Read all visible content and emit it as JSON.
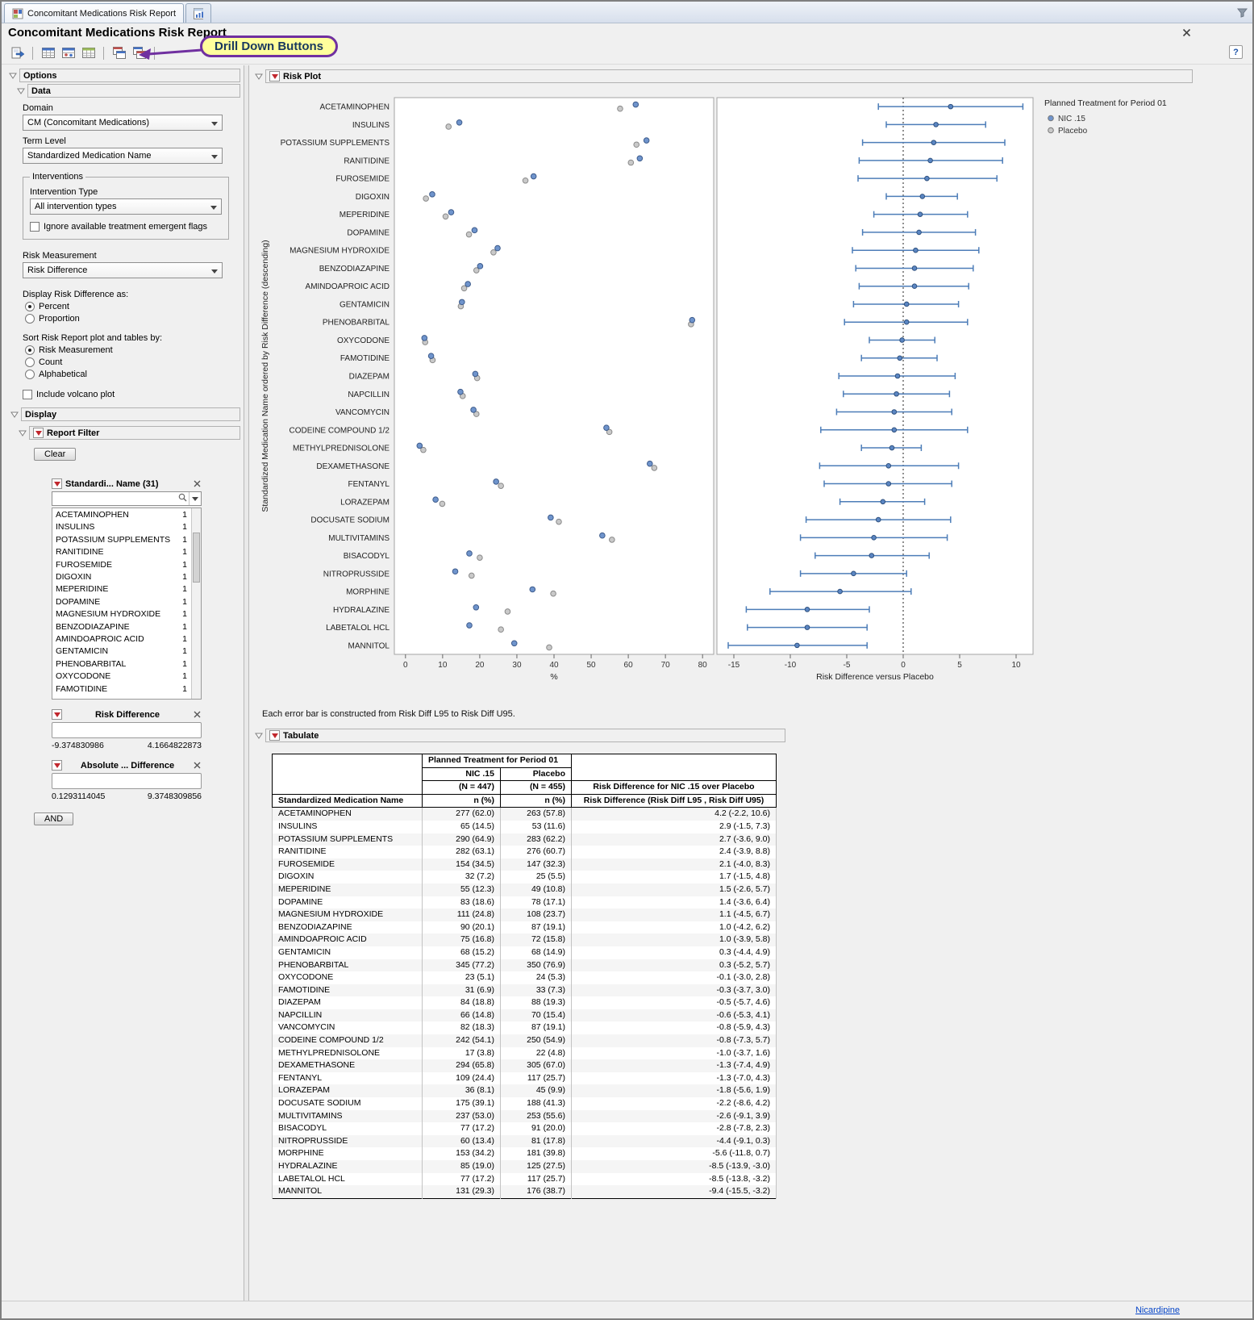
{
  "window": {
    "tab_title": "Concomitant Medications Risk Report",
    "page_title": "Concomitant Medications Risk Report",
    "help_glyph": "?",
    "status_link": "Nicardipine"
  },
  "callout": {
    "text": "Drill Down Buttons"
  },
  "sidebar": {
    "title": "Options",
    "data": {
      "title": "Data",
      "domain": {
        "label": "Domain",
        "value": "CM (Concomitant Medications)"
      },
      "term_level": {
        "label": "Term Level",
        "value": "Standardized Medication Name"
      },
      "interventions": {
        "title": "Interventions",
        "type_label": "Intervention Type",
        "type_value": "All intervention types",
        "ignore_flags_label": "Ignore available treatment emergent flags"
      },
      "risk_measurement": {
        "label": "Risk Measurement",
        "value": "Risk Difference"
      },
      "display_as": {
        "label": "Display Risk Difference as:",
        "options": [
          "Percent",
          "Proportion"
        ],
        "selected": "Percent"
      },
      "sort_by": {
        "label": "Sort Risk Report plot and tables by:",
        "options": [
          "Risk Measurement",
          "Count",
          "Alphabetical"
        ],
        "selected": "Risk Measurement"
      },
      "volcano_label": "Include volcano plot"
    },
    "display": {
      "title": "Display",
      "report_filter_title": "Report Filter",
      "clear_label": "Clear",
      "and_label": "AND",
      "name_filter": {
        "title": "Standardi... Name (31)",
        "items": [
          {
            "label": "ACETAMINOPHEN",
            "count": "1"
          },
          {
            "label": "INSULINS",
            "count": "1"
          },
          {
            "label": "POTASSIUM SUPPLEMENTS",
            "count": "1"
          },
          {
            "label": "RANITIDINE",
            "count": "1"
          },
          {
            "label": "FUROSEMIDE",
            "count": "1"
          },
          {
            "label": "DIGOXIN",
            "count": "1"
          },
          {
            "label": "MEPERIDINE",
            "count": "1"
          },
          {
            "label": "DOPAMINE",
            "count": "1"
          },
          {
            "label": "MAGNESIUM HYDROXIDE",
            "count": "1"
          },
          {
            "label": "BENZODIAZAPINE",
            "count": "1"
          },
          {
            "label": "AMINDOAPROIC ACID",
            "count": "1"
          },
          {
            "label": "GENTAMICIN",
            "count": "1"
          },
          {
            "label": "PHENOBARBITAL",
            "count": "1"
          },
          {
            "label": "OXYCODONE",
            "count": "1"
          },
          {
            "label": "FAMOTIDINE",
            "count": "1"
          }
        ]
      },
      "risk_filter": {
        "title": "Risk Difference",
        "min": "-9.374830986",
        "max": "4.1664822873"
      },
      "abs_filter": {
        "title": "Absolute ... Difference",
        "min": "0.1293114045",
        "max": "9.3748309856"
      }
    }
  },
  "risk_plot": {
    "title": "Risk Plot",
    "footnote": "Each error bar is constructed from Risk Diff L95 to Risk Diff U95."
  },
  "tabulate": {
    "title": "Tabulate",
    "span_header": "Planned Treatment for Period 01",
    "nic_label": "NIC .15",
    "placebo_label": "Placebo",
    "nic_n": "(N = 447)",
    "placebo_n": "(N = 455)",
    "risk_over_header": "Risk Difference for NIC .15 over Placebo",
    "name_header": "Standardized Medication Name",
    "npct_header": "n (%)",
    "risk_detail_header": "Risk Difference (Risk Diff L95 , Risk Diff U95)"
  },
  "chart_data": {
    "type": "scatter",
    "title": "Risk Plot",
    "ylabel": "Standardized Medication Name ordered by Risk Difference (descending)",
    "left_panel": {
      "xlabel": "%",
      "xlim": [
        0,
        80
      ],
      "xticks": [
        0,
        10,
        20,
        30,
        40,
        50,
        60,
        70,
        80
      ]
    },
    "right_panel": {
      "xlabel": "Risk Difference versus Placebo",
      "xlim": [
        -15,
        10
      ],
      "xticks": [
        -15,
        -10,
        -5,
        0,
        5,
        10
      ],
      "reference_line": 0
    },
    "legend": {
      "title": "Planned Treatment for Period 01",
      "items": [
        {
          "label": "NIC .15",
          "color": "#6f94cc"
        },
        {
          "label": "Placebo",
          "color": "#c9c9c9"
        }
      ]
    },
    "rows": [
      {
        "name": "ACETAMINOPHEN",
        "nic": "277 (62.0)",
        "plc": "263 (57.8)",
        "nic_pct": 62.0,
        "plc_pct": 57.8,
        "diff": 4.2,
        "l95": -2.2,
        "u95": 10.6,
        "diff_text": "4.2 (-2.2, 10.6)"
      },
      {
        "name": "INSULINS",
        "nic": "65 (14.5)",
        "plc": "53 (11.6)",
        "nic_pct": 14.5,
        "plc_pct": 11.6,
        "diff": 2.9,
        "l95": -1.5,
        "u95": 7.3,
        "diff_text": "2.9 (-1.5, 7.3)"
      },
      {
        "name": "POTASSIUM SUPPLEMENTS",
        "nic": "290 (64.9)",
        "plc": "283 (62.2)",
        "nic_pct": 64.9,
        "plc_pct": 62.2,
        "diff": 2.7,
        "l95": -3.6,
        "u95": 9.0,
        "diff_text": "2.7 (-3.6, 9.0)"
      },
      {
        "name": "RANITIDINE",
        "nic": "282 (63.1)",
        "plc": "276 (60.7)",
        "nic_pct": 63.1,
        "plc_pct": 60.7,
        "diff": 2.4,
        "l95": -3.9,
        "u95": 8.8,
        "diff_text": "2.4 (-3.9, 8.8)"
      },
      {
        "name": "FUROSEMIDE",
        "nic": "154 (34.5)",
        "plc": "147 (32.3)",
        "nic_pct": 34.5,
        "plc_pct": 32.3,
        "diff": 2.1,
        "l95": -4.0,
        "u95": 8.3,
        "diff_text": "2.1 (-4.0, 8.3)"
      },
      {
        "name": "DIGOXIN",
        "nic": "32 (7.2)",
        "plc": "25 (5.5)",
        "nic_pct": 7.2,
        "plc_pct": 5.5,
        "diff": 1.7,
        "l95": -1.5,
        "u95": 4.8,
        "diff_text": "1.7 (-1.5, 4.8)"
      },
      {
        "name": "MEPERIDINE",
        "nic": "55 (12.3)",
        "plc": "49 (10.8)",
        "nic_pct": 12.3,
        "plc_pct": 10.8,
        "diff": 1.5,
        "l95": -2.6,
        "u95": 5.7,
        "diff_text": "1.5 (-2.6, 5.7)"
      },
      {
        "name": "DOPAMINE",
        "nic": "83 (18.6)",
        "plc": "78 (17.1)",
        "nic_pct": 18.6,
        "plc_pct": 17.1,
        "diff": 1.4,
        "l95": -3.6,
        "u95": 6.4,
        "diff_text": "1.4 (-3.6, 6.4)"
      },
      {
        "name": "MAGNESIUM HYDROXIDE",
        "nic": "111 (24.8)",
        "plc": "108 (23.7)",
        "nic_pct": 24.8,
        "plc_pct": 23.7,
        "diff": 1.1,
        "l95": -4.5,
        "u95": 6.7,
        "diff_text": "1.1 (-4.5, 6.7)"
      },
      {
        "name": "BENZODIAZAPINE",
        "nic": "90 (20.1)",
        "plc": "87 (19.1)",
        "nic_pct": 20.1,
        "plc_pct": 19.1,
        "diff": 1.0,
        "l95": -4.2,
        "u95": 6.2,
        "diff_text": "1.0 (-4.2, 6.2)"
      },
      {
        "name": "AMINDOAPROIC ACID",
        "nic": "75 (16.8)",
        "plc": "72 (15.8)",
        "nic_pct": 16.8,
        "plc_pct": 15.8,
        "diff": 1.0,
        "l95": -3.9,
        "u95": 5.8,
        "diff_text": "1.0 (-3.9, 5.8)"
      },
      {
        "name": "GENTAMICIN",
        "nic": "68 (15.2)",
        "plc": "68 (14.9)",
        "nic_pct": 15.2,
        "plc_pct": 14.9,
        "diff": 0.3,
        "l95": -4.4,
        "u95": 4.9,
        "diff_text": "0.3 (-4.4, 4.9)"
      },
      {
        "name": "PHENOBARBITAL",
        "nic": "345 (77.2)",
        "plc": "350 (76.9)",
        "nic_pct": 77.2,
        "plc_pct": 76.9,
        "diff": 0.3,
        "l95": -5.2,
        "u95": 5.7,
        "diff_text": "0.3 (-5.2, 5.7)"
      },
      {
        "name": "OXYCODONE",
        "nic": "23 (5.1)",
        "plc": "24 (5.3)",
        "nic_pct": 5.1,
        "plc_pct": 5.3,
        "diff": -0.1,
        "l95": -3.0,
        "u95": 2.8,
        "diff_text": "-0.1 (-3.0, 2.8)"
      },
      {
        "name": "FAMOTIDINE",
        "nic": "31 (6.9)",
        "plc": "33 (7.3)",
        "nic_pct": 6.9,
        "plc_pct": 7.3,
        "diff": -0.3,
        "l95": -3.7,
        "u95": 3.0,
        "diff_text": "-0.3 (-3.7, 3.0)"
      },
      {
        "name": "DIAZEPAM",
        "nic": "84 (18.8)",
        "plc": "88 (19.3)",
        "nic_pct": 18.8,
        "plc_pct": 19.3,
        "diff": -0.5,
        "l95": -5.7,
        "u95": 4.6,
        "diff_text": "-0.5 (-5.7, 4.6)"
      },
      {
        "name": "NAPCILLIN",
        "nic": "66 (14.8)",
        "plc": "70 (15.4)",
        "nic_pct": 14.8,
        "plc_pct": 15.4,
        "diff": -0.6,
        "l95": -5.3,
        "u95": 4.1,
        "diff_text": "-0.6 (-5.3, 4.1)"
      },
      {
        "name": "VANCOMYCIN",
        "nic": "82 (18.3)",
        "plc": "87 (19.1)",
        "nic_pct": 18.3,
        "plc_pct": 19.1,
        "diff": -0.8,
        "l95": -5.9,
        "u95": 4.3,
        "diff_text": "-0.8 (-5.9, 4.3)"
      },
      {
        "name": "CODEINE COMPOUND 1/2",
        "nic": "242 (54.1)",
        "plc": "250 (54.9)",
        "nic_pct": 54.1,
        "plc_pct": 54.9,
        "diff": -0.8,
        "l95": -7.3,
        "u95": 5.7,
        "diff_text": "-0.8 (-7.3, 5.7)"
      },
      {
        "name": "METHYLPREDNISOLONE",
        "nic": "17 (3.8)",
        "plc": "22 (4.8)",
        "nic_pct": 3.8,
        "plc_pct": 4.8,
        "diff": -1.0,
        "l95": -3.7,
        "u95": 1.6,
        "diff_text": "-1.0 (-3.7, 1.6)"
      },
      {
        "name": "DEXAMETHASONE",
        "nic": "294 (65.8)",
        "plc": "305 (67.0)",
        "nic_pct": 65.8,
        "plc_pct": 67.0,
        "diff": -1.3,
        "l95": -7.4,
        "u95": 4.9,
        "diff_text": "-1.3 (-7.4, 4.9)"
      },
      {
        "name": "FENTANYL",
        "nic": "109 (24.4)",
        "plc": "117 (25.7)",
        "nic_pct": 24.4,
        "plc_pct": 25.7,
        "diff": -1.3,
        "l95": -7.0,
        "u95": 4.3,
        "diff_text": "-1.3 (-7.0, 4.3)"
      },
      {
        "name": "LORAZEPAM",
        "nic": "36 (8.1)",
        "plc": "45 (9.9)",
        "nic_pct": 8.1,
        "plc_pct": 9.9,
        "diff": -1.8,
        "l95": -5.6,
        "u95": 1.9,
        "diff_text": "-1.8 (-5.6, 1.9)"
      },
      {
        "name": "DOCUSATE SODIUM",
        "nic": "175 (39.1)",
        "plc": "188 (41.3)",
        "nic_pct": 39.1,
        "plc_pct": 41.3,
        "diff": -2.2,
        "l95": -8.6,
        "u95": 4.2,
        "diff_text": "-2.2 (-8.6, 4.2)"
      },
      {
        "name": "MULTIVITAMINS",
        "nic": "237 (53.0)",
        "plc": "253 (55.6)",
        "nic_pct": 53.0,
        "plc_pct": 55.6,
        "diff": -2.6,
        "l95": -9.1,
        "u95": 3.9,
        "diff_text": "-2.6 (-9.1, 3.9)"
      },
      {
        "name": "BISACODYL",
        "nic": "77 (17.2)",
        "plc": "91 (20.0)",
        "nic_pct": 17.2,
        "plc_pct": 20.0,
        "diff": -2.8,
        "l95": -7.8,
        "u95": 2.3,
        "diff_text": "-2.8 (-7.8, 2.3)"
      },
      {
        "name": "NITROPRUSSIDE",
        "nic": "60 (13.4)",
        "plc": "81 (17.8)",
        "nic_pct": 13.4,
        "plc_pct": 17.8,
        "diff": -4.4,
        "l95": -9.1,
        "u95": 0.3,
        "diff_text": "-4.4 (-9.1, 0.3)"
      },
      {
        "name": "MORPHINE",
        "nic": "153 (34.2)",
        "plc": "181 (39.8)",
        "nic_pct": 34.2,
        "plc_pct": 39.8,
        "diff": -5.6,
        "l95": -11.8,
        "u95": 0.7,
        "diff_text": "-5.6 (-11.8, 0.7)"
      },
      {
        "name": "HYDRALAZINE",
        "nic": "85 (19.0)",
        "plc": "125 (27.5)",
        "nic_pct": 19.0,
        "plc_pct": 27.5,
        "diff": -8.5,
        "l95": -13.9,
        "u95": -3.0,
        "diff_text": "-8.5 (-13.9, -3.0)"
      },
      {
        "name": "LABETALOL HCL",
        "nic": "77 (17.2)",
        "plc": "117 (25.7)",
        "nic_pct": 17.2,
        "plc_pct": 25.7,
        "diff": -8.5,
        "l95": -13.8,
        "u95": -3.2,
        "diff_text": "-8.5 (-13.8, -3.2)"
      },
      {
        "name": "MANNITOL",
        "nic": "131 (29.3)",
        "plc": "176 (38.7)",
        "nic_pct": 29.3,
        "plc_pct": 38.7,
        "diff": -9.4,
        "l95": -15.5,
        "u95": -3.2,
        "diff_text": "-9.4 (-15.5, -3.2)"
      }
    ]
  }
}
